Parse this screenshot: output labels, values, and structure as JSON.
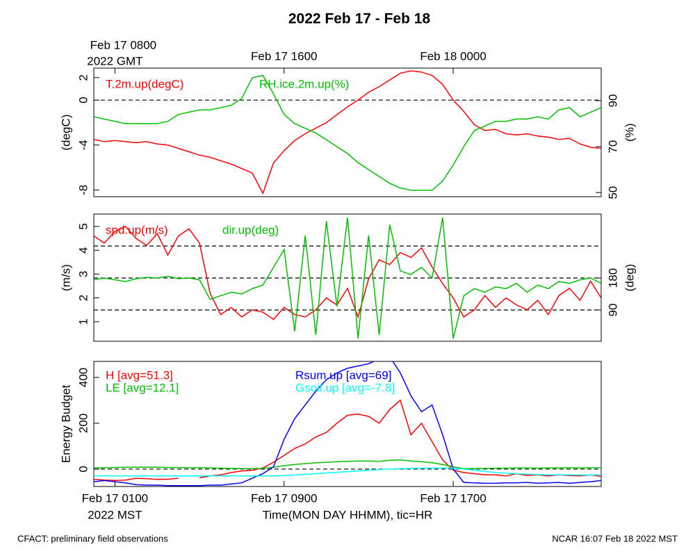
{
  "title": "2022 Feb 17 - Feb 18",
  "footer_left": "CFACT: preliminary field observations",
  "footer_right": "NCAR 16:07 Feb 18 2022 MST",
  "chart_data": [
    {
      "type": "line",
      "x": [
        "Feb 17 0000",
        "Feb 17 0030",
        "Feb 17 0100",
        "Feb 17 0130",
        "Feb 17 0200",
        "Feb 17 0230",
        "Feb 17 0300",
        "Feb 17 0330",
        "Feb 17 0400",
        "Feb 17 0430",
        "Feb 17 0500",
        "Feb 17 0530",
        "Feb 17 0600",
        "Feb 17 0630",
        "Feb 17 0700",
        "Feb 17 0730",
        "Feb 17 0800",
        "Feb 17 0830",
        "Feb 17 0900",
        "Feb 17 0930",
        "Feb 17 1000",
        "Feb 17 1030",
        "Feb 17 1100",
        "Feb 17 1130",
        "Feb 17 1200",
        "Feb 17 1230",
        "Feb 17 1300",
        "Feb 17 1330",
        "Feb 17 1400",
        "Feb 17 1430",
        "Feb 17 1500",
        "Feb 17 1530",
        "Feb 17 1600",
        "Feb 17 1630",
        "Feb 17 1700",
        "Feb 17 1730",
        "Feb 17 1800",
        "Feb 17 1830",
        "Feb 17 1900",
        "Feb 17 1930",
        "Feb 17 2000",
        "Feb 17 2030",
        "Feb 17 2100",
        "Feb 17 2130",
        "Feb 17 2200",
        "Feb 17 2230",
        "Feb 17 2300",
        "Feb 17 2330",
        "Feb 18 0000"
      ],
      "xlim": [
        "Feb 17 0000",
        "Feb 18 0000"
      ],
      "x2ticks": [
        {
          "value": "Feb 17 0100",
          "label": "Feb 17 0800"
        },
        {
          "value": "Feb 17 0900",
          "label": "Feb 17 1600"
        },
        {
          "value": "Feb 17 1700",
          "label": "Feb 18 0000"
        }
      ],
      "x2_note": "2022 GMT",
      "ylabel": "(degC)",
      "y2label": "(%)",
      "ylim": [
        -8.6,
        2.85
      ],
      "yticks": [
        -8,
        -4,
        0,
        2
      ],
      "y2lim": [
        48.2,
        104.2
      ],
      "y2ticks": [
        50,
        70,
        90
      ],
      "reference_lines": [
        {
          "value": 0,
          "axis": "y"
        }
      ],
      "series": [
        {
          "name": "T.2m.up(degC)",
          "color": "#ff0000",
          "values": [
            -3.5,
            -3.7,
            -3.6,
            -3.7,
            -3.8,
            -3.7,
            -3.9,
            -4.0,
            -4.3,
            -4.6,
            -4.9,
            -5.1,
            -5.4,
            -5.7,
            -6.1,
            -6.5,
            -8.3,
            -5.6,
            -4.5,
            -3.6,
            -3.0,
            -2.5,
            -2.0,
            -1.3,
            -0.6,
            0.0,
            0.7,
            1.2,
            1.8,
            2.4,
            2.6,
            2.5,
            2.2,
            1.4,
            0.0,
            -1.0,
            -2.2,
            -2.7,
            -2.6,
            -3.0,
            -3.1,
            -3.0,
            -3.2,
            -3.3,
            -3.5,
            -3.4,
            -3.9,
            -4.2,
            -4.3
          ]
        },
        {
          "name": "RH.ice.2m.up(%)",
          "color": "#00c000",
          "axis": "y2",
          "values": [
            83,
            82,
            81,
            80,
            80,
            80,
            80,
            81,
            84,
            85,
            86,
            86,
            87,
            88,
            91,
            100,
            101,
            93,
            84,
            80,
            78,
            76,
            73,
            70,
            67,
            63,
            60,
            57,
            54,
            52,
            51,
            51,
            51,
            55,
            62,
            70,
            77,
            79,
            81,
            81,
            82,
            82,
            83,
            82,
            86,
            87,
            83,
            85,
            87
          ]
        }
      ]
    },
    {
      "type": "line",
      "x": [
        "Feb 17 0000",
        "Feb 17 0030",
        "Feb 17 0100",
        "Feb 17 0130",
        "Feb 17 0200",
        "Feb 17 0230",
        "Feb 17 0300",
        "Feb 17 0330",
        "Feb 17 0400",
        "Feb 17 0430",
        "Feb 17 0500",
        "Feb 17 0530",
        "Feb 17 0600",
        "Feb 17 0630",
        "Feb 17 0700",
        "Feb 17 0730",
        "Feb 17 0800",
        "Feb 17 0830",
        "Feb 17 0900",
        "Feb 17 0930",
        "Feb 17 1000",
        "Feb 17 1030",
        "Feb 17 1100",
        "Feb 17 1130",
        "Feb 17 1200",
        "Feb 17 1230",
        "Feb 17 1300",
        "Feb 17 1330",
        "Feb 17 1400",
        "Feb 17 1430",
        "Feb 17 1500",
        "Feb 17 1530",
        "Feb 17 1600",
        "Feb 17 1630",
        "Feb 17 1700",
        "Feb 17 1730",
        "Feb 17 1800",
        "Feb 17 1830",
        "Feb 17 1900",
        "Feb 17 1930",
        "Feb 17 2000",
        "Feb 17 2030",
        "Feb 17 2100",
        "Feb 17 2130",
        "Feb 17 2200",
        "Feb 17 2230",
        "Feb 17 2300",
        "Feb 17 2330",
        "Feb 18 0000"
      ],
      "xlim": [
        "Feb 17 0000",
        "Feb 18 0000"
      ],
      "ylabel": "(m/s)",
      "y2label": "(deg)",
      "ylim": [
        0.18,
        5.52
      ],
      "yticks": [
        1,
        2,
        3,
        4,
        5
      ],
      "y2lim": [
        2,
        360
      ],
      "y2ticks": [
        90,
        180
      ],
      "reference_lines": [
        {
          "value": 90,
          "axis": "y2"
        },
        {
          "value": 180,
          "axis": "y2"
        },
        {
          "value": 270,
          "axis": "y2"
        }
      ],
      "series": [
        {
          "name": "spd.up(m/s)",
          "color": "#ff0000",
          "values": [
            4.6,
            4.3,
            4.8,
            5.0,
            4.5,
            4.2,
            4.7,
            3.8,
            4.6,
            4.9,
            4.3,
            2.2,
            1.3,
            1.6,
            1.2,
            1.5,
            1.4,
            1.1,
            1.6,
            1.3,
            1.2,
            1.5,
            2.0,
            1.7,
            2.4,
            1.2,
            2.8,
            3.6,
            3.4,
            3.9,
            3.7,
            4.1,
            3.3,
            2.6,
            2.0,
            1.2,
            1.5,
            2.1,
            1.6,
            2.0,
            1.7,
            1.5,
            1.9,
            1.3,
            2.1,
            2.4,
            1.9,
            2.7,
            2.0
          ]
        },
        {
          "name": "dir.up(deg)",
          "color": "#00c000",
          "axis": "y2",
          "values": [
            175,
            180,
            175,
            170,
            178,
            182,
            180,
            185,
            178,
            180,
            175,
            120,
            130,
            140,
            135,
            150,
            160,
            210,
            260,
            30,
            300,
            20,
            340,
            100,
            350,
            10,
            300,
            20,
            330,
            200,
            190,
            210,
            180,
            350,
            10,
            130,
            150,
            140,
            155,
            150,
            165,
            140,
            160,
            150,
            170,
            165,
            175,
            180,
            165
          ]
        }
      ]
    },
    {
      "type": "line",
      "x": [
        "Feb 17 0000",
        "Feb 17 0030",
        "Feb 17 0100",
        "Feb 17 0130",
        "Feb 17 0200",
        "Feb 17 0230",
        "Feb 17 0300",
        "Feb 17 0330",
        "Feb 17 0400",
        "Feb 17 0430",
        "Feb 17 0500",
        "Feb 17 0530",
        "Feb 17 0600",
        "Feb 17 0630",
        "Feb 17 0700",
        "Feb 17 0730",
        "Feb 17 0800",
        "Feb 17 0830",
        "Feb 17 0900",
        "Feb 17 0930",
        "Feb 17 1000",
        "Feb 17 1030",
        "Feb 17 1100",
        "Feb 17 1130",
        "Feb 17 1200",
        "Feb 17 1230",
        "Feb 17 1300",
        "Feb 17 1330",
        "Feb 17 1400",
        "Feb 17 1430",
        "Feb 17 1500",
        "Feb 17 1530",
        "Feb 17 1600",
        "Feb 17 1630",
        "Feb 17 1700",
        "Feb 17 1730",
        "Feb 17 1800",
        "Feb 17 1830",
        "Feb 17 1900",
        "Feb 17 1930",
        "Feb 17 2000",
        "Feb 17 2030",
        "Feb 17 2100",
        "Feb 17 2130",
        "Feb 17 2200",
        "Feb 17 2230",
        "Feb 17 2300",
        "Feb 17 2330",
        "Feb 18 0000"
      ],
      "xlim": [
        "Feb 17 0000",
        "Feb 18 0000"
      ],
      "xticks": [
        "Feb 17 0100",
        "Feb 17 0900",
        "Feb 17 1700"
      ],
      "x_note": "2022 MST",
      "xlabel": "Time(MON DAY HHMM), tic=HR",
      "ylabel": "Energy Budget",
      "ylim": [
        -76,
        470
      ],
      "yticks": [
        0,
        200,
        400
      ],
      "reference_lines": [
        {
          "value": 0,
          "axis": "y"
        }
      ],
      "series": [
        {
          "name": "H [avg=51.3]",
          "color": "#ff0000",
          "values": [
            -45,
            -48,
            -50,
            -48,
            -40,
            -42,
            -45,
            -44,
            -40,
            null,
            -38,
            -30,
            -25,
            -15,
            -8,
            -5,
            5,
            30,
            60,
            90,
            110,
            140,
            160,
            200,
            235,
            240,
            230,
            200,
            260,
            300,
            150,
            200,
            120,
            40,
            -5,
            -15,
            -20,
            -25,
            -25,
            -30,
            -20,
            -28,
            -25,
            -30,
            -25,
            -28,
            -30,
            -25,
            -32
          ]
        },
        {
          "name": "LE [avg=12.1]",
          "color": "#00c000",
          "values": [
            5,
            6,
            7,
            8,
            8,
            8,
            8,
            7,
            7,
            6,
            6,
            5,
            4,
            3,
            2,
            2,
            3,
            8,
            15,
            20,
            24,
            27,
            30,
            32,
            34,
            35,
            35,
            34,
            38,
            40,
            35,
            32,
            28,
            20,
            10,
            2,
            2,
            3,
            4,
            4,
            5,
            5,
            4,
            5,
            5,
            6,
            5,
            6,
            6
          ]
        },
        {
          "name": "Rsum.up [avg=69]",
          "color": "#0000ff",
          "values": [
            -55,
            -50,
            -55,
            -60,
            -68,
            -70,
            -70,
            -72,
            -72,
            -72,
            -72,
            -70,
            -70,
            -65,
            -60,
            -40,
            -20,
            10,
            130,
            220,
            280,
            340,
            390,
            420,
            440,
            450,
            460,
            480,
            490,
            420,
            320,
            250,
            280,
            150,
            0,
            -58,
            -60,
            -62,
            -62,
            -60,
            -60,
            -58,
            -62,
            -60,
            -58,
            -62,
            -58,
            -55,
            -50
          ]
        },
        {
          "name": "Gsoil.up [avg=-7.8]",
          "color": "#00ffff",
          "values": [
            -30,
            -30,
            -30,
            -30,
            -30,
            -30,
            -30,
            -30,
            -30,
            -30,
            -30,
            -30,
            -30,
            -30,
            -30,
            -30,
            -30,
            -30,
            -28,
            -26,
            -23,
            -20,
            -17,
            -14,
            -11,
            -8,
            -5,
            -2,
            0,
            2,
            3,
            4,
            4,
            5,
            3,
            0,
            -5,
            -10,
            -15,
            -18,
            -20,
            -22,
            -24,
            -25,
            -25,
            -25,
            -26,
            -26,
            -25
          ]
        }
      ]
    }
  ]
}
